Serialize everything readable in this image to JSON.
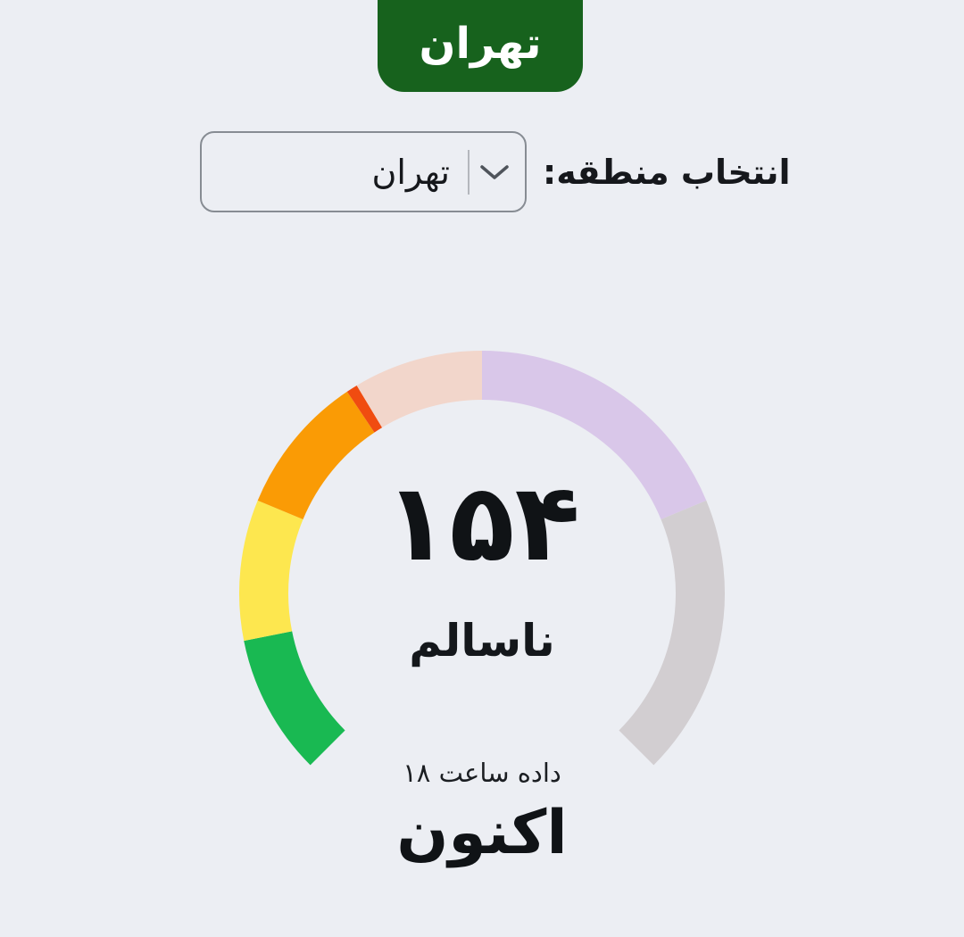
{
  "page": {
    "background_color": "#eceef3"
  },
  "badge": {
    "label": "تهران",
    "bg_color": "#17621d",
    "text_color": "#ffffff"
  },
  "region_selector": {
    "label": "انتخاب منطقه:",
    "selected_value": "تهران",
    "chevron_icon": "chevron-down",
    "border_color": "#878c93"
  },
  "gauge": {
    "value_display": "۱۵۴",
    "status_label": "ناسالم",
    "data_hour_note": "داده ساعت ۱۸",
    "now_label": "اکنون"
  },
  "chart_data": {
    "type": "gauge",
    "value": 154,
    "value_display": "۱۵۴",
    "status_label": "ناسالم",
    "arc_total_span_deg": 270,
    "start_deg": -135,
    "end_deg": 135,
    "segments": [
      {
        "name": "filled-green",
        "color": "#19b952",
        "from_deg": -135,
        "to_deg": -101.25
      },
      {
        "name": "filled-yellow",
        "color": "#fde74f",
        "from_deg": -101.25,
        "to_deg": -67.5
      },
      {
        "name": "filled-orange",
        "color": "#fa9b05",
        "from_deg": -67.5,
        "to_deg": -33.75
      },
      {
        "name": "filled-red",
        "color": "#f04c10",
        "from_deg": -33.75,
        "to_deg": -31.05
      },
      {
        "name": "faded-red",
        "color": "#f2d6cb",
        "from_deg": -31.05,
        "to_deg": 0
      },
      {
        "name": "faded-purple",
        "color": "#d9c7e9",
        "from_deg": 0,
        "to_deg": 67.5
      },
      {
        "name": "faded-gray",
        "color": "#d2ced1",
        "from_deg": 67.5,
        "to_deg": 135
      }
    ]
  }
}
